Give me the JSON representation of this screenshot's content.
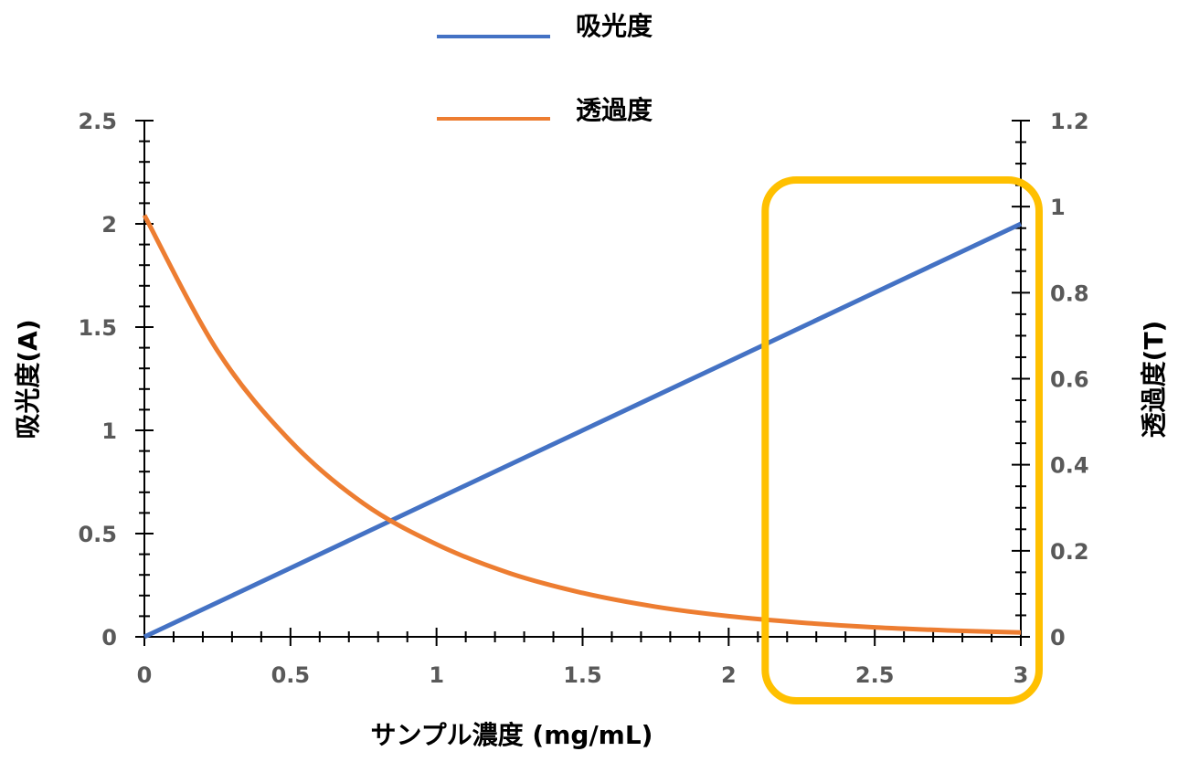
{
  "chart_data": {
    "type": "line",
    "xlabel": "サンプル濃度 (mg/mL)",
    "ylabel": "吸光度(A)",
    "y2label": "透過度(T)",
    "xlim": [
      0,
      3
    ],
    "ylim": [
      0,
      2.5
    ],
    "y2lim": [
      0,
      1.2
    ],
    "x_ticks": [
      "0",
      "0.5",
      "1",
      "1.5",
      "2",
      "2.5",
      "3"
    ],
    "y_ticks": [
      "0",
      "0.5",
      "1",
      "1.5",
      "2",
      "2.5"
    ],
    "y2_ticks": [
      "0",
      "0.2",
      "0.4",
      "0.6",
      "0.8",
      "1",
      "1.2"
    ],
    "legend_position": "top-center",
    "grid": false,
    "series": [
      {
        "name": "吸光度",
        "axis": "left",
        "color": "#4472C4",
        "x": [
          0,
          0.5,
          1,
          1.5,
          2,
          2.5,
          3
        ],
        "y": [
          0,
          0.333,
          0.667,
          1.0,
          1.333,
          1.667,
          2.0
        ]
      },
      {
        "name": "透過度",
        "axis": "right",
        "color": "#ED7D31",
        "x": [
          0,
          0.25,
          0.5,
          0.75,
          1,
          1.25,
          1.5,
          1.75,
          2,
          2.25,
          2.5,
          2.75,
          3
        ],
        "y": [
          0.98,
          0.665,
          0.455,
          0.31,
          0.215,
          0.148,
          0.102,
          0.07,
          0.048,
          0.033,
          0.022,
          0.015,
          0.01
        ]
      }
    ],
    "highlight_box": {
      "x_from": 2.1,
      "x_to": 3.0,
      "color": "#FFC000"
    }
  }
}
